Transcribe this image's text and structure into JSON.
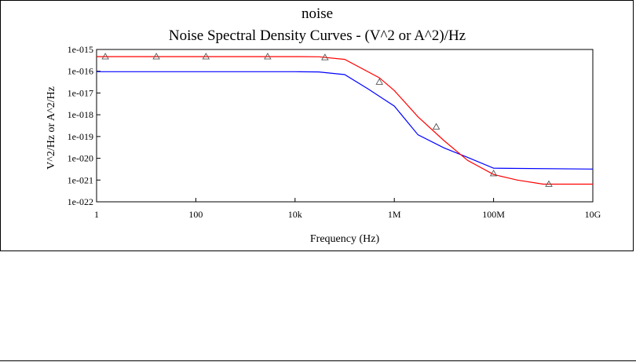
{
  "chart_data": {
    "type": "line",
    "title": "noise",
    "subtitle": "Noise Spectral Density Curves - (V^2 or A^2)/Hz",
    "xlabel": "Frequency (Hz)",
    "ylabel": "V^2/Hz or A^2/Hz",
    "xscale": "log",
    "yscale": "log",
    "xlim": [
      1,
      10000000000
    ],
    "ylim": [
      1e-22,
      1e-15
    ],
    "grid": false,
    "x_ticks": [
      {
        "value": 1,
        "label": "1"
      },
      {
        "value": 100,
        "label": "100"
      },
      {
        "value": 10000,
        "label": "10k"
      },
      {
        "value": 1000000,
        "label": "1M"
      },
      {
        "value": 100000000,
        "label": "100M"
      },
      {
        "value": 10000000000,
        "label": "10G"
      }
    ],
    "y_ticks": [
      {
        "value": 1e-15,
        "label": "1e-015"
      },
      {
        "value": 1e-16,
        "label": "1e-016"
      },
      {
        "value": 1e-17,
        "label": "1e-017"
      },
      {
        "value": 1e-18,
        "label": "1e-018"
      },
      {
        "value": 1e-19,
        "label": "1e-019"
      },
      {
        "value": 1e-20,
        "label": "1e-020"
      },
      {
        "value": 1e-21,
        "label": "1e-021"
      },
      {
        "value": 1e-22,
        "label": "1e-022"
      }
    ],
    "series": [
      {
        "color": "#ff0000",
        "marker": "triangle",
        "x": [
          1,
          1000,
          10000,
          30000,
          100000,
          500000,
          1000000,
          3000000,
          10000000,
          30000000,
          100000000,
          300000000,
          1000000000,
          10000000000
        ],
        "y": [
          4.7e-16,
          4.7e-16,
          4.7e-16,
          4.6e-16,
          3.5e-16,
          5e-17,
          1.3e-17,
          8e-19,
          6.5e-20,
          8e-21,
          1.8e-21,
          1e-21,
          6.5e-22,
          6.5e-22
        ],
        "markers_x": [
          1.5,
          16,
          160,
          2800,
          40000,
          500000,
          7000000,
          100000000,
          1300000000
        ],
        "markers_y": [
          4.7e-16,
          4.7e-16,
          4.7e-16,
          4.7e-16,
          4.3e-16,
          3.2e-17,
          2.8e-19,
          2e-21,
          6.5e-22
        ]
      },
      {
        "color": "#0000ff",
        "marker": "none",
        "x": [
          1,
          10000,
          30000,
          100000,
          300000,
          1000000,
          3000000,
          10000000,
          30000000,
          100000000,
          10000000000
        ],
        "y": [
          9.5e-17,
          9.5e-17,
          9.3e-17,
          7e-17,
          1.5e-17,
          2.5e-18,
          1.2e-19,
          3e-20,
          1.1e-20,
          3.5e-21,
          3.2e-21
        ]
      }
    ]
  }
}
